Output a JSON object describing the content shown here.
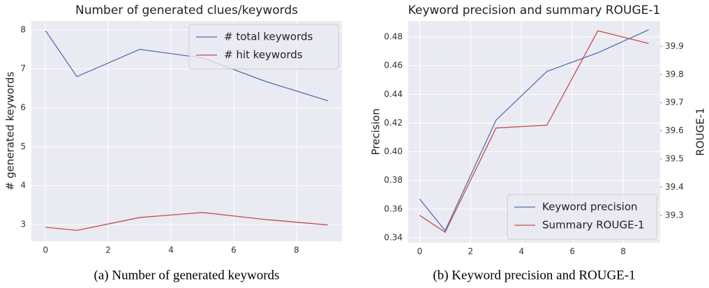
{
  "chart_data": [
    {
      "type": "line",
      "title": "Number of generated clues/keywords",
      "ylabel": "# generated keywords",
      "caption": "(a) Number of generated keywords",
      "x": [
        0,
        1,
        3,
        5,
        7,
        9
      ],
      "series": [
        {
          "name": "# total keywords",
          "color": "#4c72b0",
          "values": [
            7.98,
            6.8,
            7.5,
            7.28,
            6.68,
            6.18
          ]
        },
        {
          "name": "# hit keywords",
          "color": "#c44e52",
          "values": [
            2.93,
            2.85,
            3.18,
            3.31,
            3.13,
            2.99
          ]
        }
      ],
      "xlim": [
        -0.45,
        9.45
      ],
      "xticks": [
        0,
        2,
        4,
        6,
        8
      ],
      "ylim": [
        2.57,
        8.23
      ],
      "yticks": [
        3,
        4,
        5,
        6,
        7,
        8
      ],
      "grid": true,
      "legend": "upper right"
    },
    {
      "type": "line",
      "title": "Keyword precision and summary ROUGE-1",
      "ylabel": "Precision",
      "y2label": "ROUGE-1",
      "caption": "(b) Keyword precision and ROUGE-1",
      "x": [
        0,
        1,
        3,
        5,
        7,
        9
      ],
      "series": [
        {
          "name": "Keyword precision",
          "color": "#4c72b0",
          "values": [
            0.367,
            0.345,
            0.422,
            0.456,
            0.469,
            0.485
          ]
        },
        {
          "name": "Summary ROUGE-1",
          "color": "#c44e52",
          "axis": "y2",
          "values": [
            39.3,
            39.24,
            39.61,
            39.62,
            39.955,
            39.91
          ]
        }
      ],
      "xlim": [
        -0.45,
        9.45
      ],
      "xticks": [
        0,
        2,
        4,
        6,
        8
      ],
      "ylim": [
        0.3366,
        0.4912
      ],
      "yticks": [
        0.34,
        0.36,
        0.38,
        {
          "value": 0.4,
          "label": "0.40"
        },
        0.42,
        0.44,
        0.46,
        0.48
      ],
      "y2lim": [
        39.203,
        39.99
      ],
      "y2ticks": [
        39.3,
        39.4,
        39.5,
        39.6,
        39.7,
        39.8,
        39.9
      ],
      "grid": true,
      "legend": "lower right"
    }
  ]
}
